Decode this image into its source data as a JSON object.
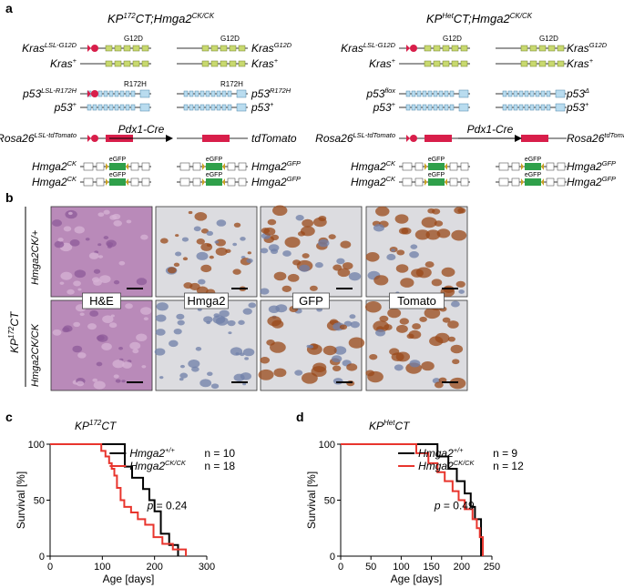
{
  "panel_a": {
    "label": "a",
    "left": {
      "title_main": "KP",
      "title_sup": "172",
      "title_rest": "CT;Hmga2",
      "title_sup2": "CK/CK",
      "rows": [
        {
          "l_main": "Kras",
          "l_sup": "LSL-G12D",
          "r_main": "Kras",
          "r_sup": "G12D",
          "mut": "G12D"
        },
        {
          "l_main": "Kras",
          "l_sup": "+",
          "r_main": "Kras",
          "r_sup": "+"
        },
        {
          "l_main": "p53",
          "l_sup": "LSL-R172H",
          "r_main": "p53",
          "r_sup": "R172H",
          "mut": "R172H"
        },
        {
          "l_main": "p53",
          "l_sup": "+",
          "r_main": "p53",
          "r_sup": "+"
        },
        {
          "l_main": "Rosa26",
          "l_sup": "LSL-tdTomato",
          "r_main": "tdTomato",
          "r_sup": ""
        },
        {
          "l_main": "Hmga2",
          "l_sup": "CK",
          "r_main": "Hmga2",
          "r_sup": "GFP",
          "cas_l": "eGFP",
          "cas_r": "eGFP"
        },
        {
          "l_main": "Hmga2",
          "l_sup": "CK",
          "r_main": "Hmga2",
          "r_sup": "GFP",
          "cas_l": "eGFP",
          "cas_r": "eGFP"
        }
      ],
      "cre": "Pdx1-Cre"
    },
    "right": {
      "title_main": "KP",
      "title_sup": "Het",
      "title_rest": "CT;Hmga2",
      "title_sup2": "CK/CK",
      "rows": [
        {
          "l_main": "Kras",
          "l_sup": "LSL-G12D",
          "r_main": "Kras",
          "r_sup": "G12D",
          "mut": "G12D"
        },
        {
          "l_main": "Kras",
          "l_sup": "+",
          "r_main": "Kras",
          "r_sup": "+"
        },
        {
          "l_main": "p53",
          "l_sup": "flox",
          "r_main": "p53",
          "r_sup": "Δ"
        },
        {
          "l_main": "p53",
          "l_sup": "+",
          "r_main": "p53",
          "r_sup": "+"
        },
        {
          "l_main": "Rosa26",
          "l_sup": "LSL-tdTomato",
          "r_main": "Rosa26",
          "r_sup": "tdTomato"
        },
        {
          "l_main": "Hmga2",
          "l_sup": "CK",
          "r_main": "Hmga2",
          "r_sup": "GFP",
          "cas_l": "eGFP",
          "cas_r": "eGFP"
        },
        {
          "l_main": "Hmga2",
          "l_sup": "CK",
          "r_main": "Hmga2",
          "r_sup": "GFP",
          "cas_l": "eGFP",
          "cas_r": "eGFP"
        }
      ],
      "cre": "Pdx1-Cre"
    }
  },
  "panel_b": {
    "label": "b",
    "side_main": "KP",
    "side_sup": "172",
    "side_rest": "CT",
    "row_labels": [
      "Hmga2CK/+",
      "Hmga2CK/CK"
    ],
    "stains": [
      "H&E",
      "Hmga2",
      "GFP",
      "Tomato"
    ],
    "colors": {
      "he": "#b98ab9",
      "ihc_bg": "#dcdce0",
      "dab": "#9a4a1a",
      "hema": "#6f7fa8"
    }
  },
  "panel_c": {
    "label": "c",
    "title_main": "KP",
    "title_sup": "172",
    "title_rest": "CT",
    "legend": [
      {
        "name_main": "Hmga2",
        "name_sup": "+/+",
        "n": "n = 10",
        "color": "#000000"
      },
      {
        "name_main": "Hmga2",
        "name_sup": "CK/CK",
        "n": "n = 18",
        "color": "#e8352d"
      }
    ],
    "p_text": "p = 0.24",
    "p_label": "p",
    "p_value": " = 0.24"
  },
  "panel_d": {
    "label": "d",
    "title_main": "KP",
    "title_sup": "Het",
    "title_rest": "CT",
    "legend": [
      {
        "name_main": "Hmga2",
        "name_sup": "+/+",
        "n": "n = 9",
        "color": "#000000"
      },
      {
        "name_main": "Hmga2",
        "name_sup": "CK/CK",
        "n": "n = 12",
        "color": "#e8352d"
      }
    ],
    "p_label": "p",
    "p_value": " = 0.49"
  },
  "chart_data": [
    {
      "type": "line",
      "title": "KP172CT",
      "xlabel": "Age [days]",
      "ylabel": "Survival [%]",
      "xlim": [
        0,
        300
      ],
      "ylim": [
        0,
        100
      ],
      "xticks": [
        0,
        100,
        200,
        300
      ],
      "yticks": [
        0,
        50,
        100
      ],
      "step": true,
      "series": [
        {
          "name": "Hmga2+/+",
          "color": "#000000",
          "x": [
            0,
            125,
            143,
            157,
            178,
            190,
            200,
            212,
            228,
            245
          ],
          "y": [
            100,
            100,
            80,
            70,
            60,
            50,
            40,
            20,
            10,
            0
          ]
        },
        {
          "name": "Hmga2CK/CK",
          "color": "#e8352d",
          "x": [
            0,
            88,
            98,
            106,
            113,
            118,
            123,
            128,
            135,
            142,
            155,
            168,
            182,
            198,
            215,
            235,
            260
          ],
          "y": [
            100,
            100,
            94,
            89,
            83,
            78,
            72,
            61,
            50,
            44,
            39,
            33,
            28,
            17,
            11,
            6,
            0
          ]
        }
      ]
    },
    {
      "type": "line",
      "title": "KPHetCT",
      "xlabel": "Age [days]",
      "ylabel": "Survival [%]",
      "xlim": [
        0,
        250
      ],
      "ylim": [
        0,
        100
      ],
      "xticks": [
        0,
        50,
        100,
        150,
        200,
        250
      ],
      "yticks": [
        0,
        50,
        100
      ],
      "step": true,
      "series": [
        {
          "name": "Hmga2+/+",
          "color": "#000000",
          "x": [
            0,
            140,
            160,
            178,
            192,
            205,
            215,
            222,
            232
          ],
          "y": [
            100,
            100,
            89,
            78,
            67,
            56,
            44,
            33,
            0
          ]
        },
        {
          "name": "Hmga2CK/CK",
          "color": "#e8352d",
          "x": [
            0,
            108,
            125,
            145,
            160,
            172,
            185,
            195,
            205,
            218,
            225,
            230,
            235
          ],
          "y": [
            100,
            100,
            92,
            83,
            75,
            67,
            58,
            50,
            42,
            33,
            25,
            17,
            0
          ]
        }
      ]
    }
  ]
}
